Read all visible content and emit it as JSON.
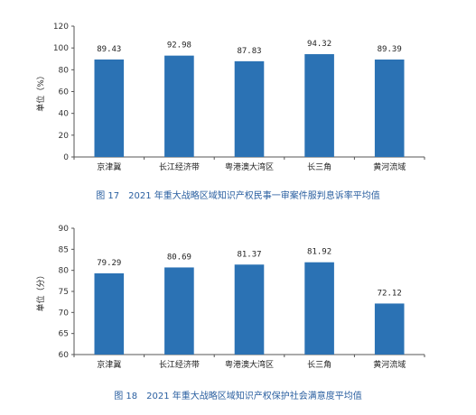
{
  "chart_data": [
    {
      "type": "bar",
      "categories": [
        "京津冀",
        "长江经济带",
        "粤港澳大湾区",
        "长三角",
        "黄河流域"
      ],
      "values": [
        89.43,
        92.98,
        87.83,
        94.32,
        89.39
      ],
      "value_labels": [
        "89.43",
        "92.98",
        "87.83",
        "94.32",
        "89.39"
      ],
      "ylabel": "单位（%）",
      "ylim": [
        0,
        120
      ],
      "yticks": [
        0,
        20,
        40,
        60,
        80,
        100,
        120
      ],
      "caption": "图 17　2021 年重大战略区域知识产权民事一审案件服判息诉率平均值",
      "bar_color": "#2b72b4",
      "grid": false
    },
    {
      "type": "bar",
      "categories": [
        "京津冀",
        "长江经济带",
        "粤港澳大湾区",
        "长三角",
        "黄河流域"
      ],
      "values": [
        79.29,
        80.69,
        81.37,
        81.92,
        72.12
      ],
      "value_labels": [
        "79.29",
        "80.69",
        "81.37",
        "81.92",
        "72.12"
      ],
      "ylabel": "单位（分）",
      "ylim": [
        60,
        90
      ],
      "yticks": [
        60,
        65,
        70,
        75,
        80,
        85,
        90
      ],
      "caption": "图 18　2021 年重大战略区域知识产权保护社会满意度平均值",
      "bar_color": "#2b72b4",
      "grid": false
    }
  ]
}
